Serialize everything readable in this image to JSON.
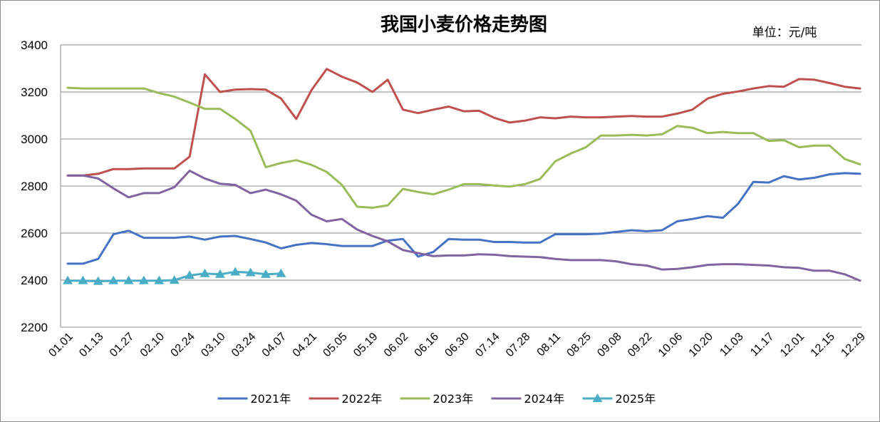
{
  "chart_data": {
    "type": "line",
    "title": "我国小麦价格走势图",
    "unit_label": "单位：元/吨",
    "xlabel": "",
    "ylabel": "",
    "ylim": [
      2200,
      3400
    ],
    "yticks": [
      2200,
      2400,
      2600,
      2800,
      3000,
      3200,
      3400
    ],
    "grid": "horizontal",
    "legend_position": "bottom",
    "x_tick_labels": [
      "01.01",
      "01.13",
      "01.27",
      "02.10",
      "02.24",
      "03.10",
      "03.24",
      "04.07",
      "04.21",
      "05.05",
      "05.19",
      "06.02",
      "06.16",
      "06.30",
      "07.14",
      "07.28",
      "08.11",
      "08.25",
      "09.08",
      "09.22",
      "10.06",
      "10.20",
      "11.03",
      "11.17",
      "12.01",
      "12.15",
      "12.29"
    ],
    "n_points": 53,
    "series": [
      {
        "name": "2021年",
        "color": "#4472C4",
        "marker": "none",
        "values": [
          2470,
          2470,
          2490,
          2595,
          2610,
          2580,
          2580,
          2580,
          2585,
          2572,
          2585,
          2588,
          2575,
          2560,
          2535,
          2550,
          2558,
          2553,
          2545,
          2545,
          2545,
          2568,
          2575,
          2500,
          2520,
          2575,
          2572,
          2572,
          2562,
          2562,
          2560,
          2560,
          2595,
          2595,
          2595,
          2598,
          2605,
          2612,
          2608,
          2612,
          2650,
          2660,
          2672,
          2665,
          2725,
          2818,
          2815,
          2842,
          2828,
          2835,
          2850,
          2855,
          2852
        ]
      },
      {
        "name": "2022年",
        "color": "#C0504D",
        "marker": "none",
        "values": [
          2845,
          2845,
          2852,
          2872,
          2872,
          2875,
          2875,
          2875,
          2925,
          3275,
          3200,
          3210,
          3212,
          3210,
          3172,
          3085,
          3208,
          3298,
          3265,
          3240,
          3200,
          3252,
          3125,
          3110,
          3125,
          3138,
          3118,
          3120,
          3090,
          3070,
          3078,
          3092,
          3088,
          3095,
          3092,
          3092,
          3095,
          3098,
          3095,
          3095,
          3108,
          3125,
          3172,
          3192,
          3202,
          3215,
          3225,
          3222,
          3255,
          3252,
          3238,
          3222,
          3215
        ]
      },
      {
        "name": "2023年",
        "color": "#9BBB59",
        "marker": "none",
        "values": [
          3218,
          3215,
          3215,
          3215,
          3215,
          3215,
          3195,
          3180,
          3155,
          3128,
          3128,
          3085,
          3035,
          2880,
          2898,
          2910,
          2890,
          2860,
          2805,
          2712,
          2708,
          2718,
          2788,
          2775,
          2765,
          2785,
          2808,
          2808,
          2802,
          2798,
          2808,
          2830,
          2905,
          2938,
          2965,
          3015,
          3015,
          3018,
          3015,
          3020,
          3055,
          3048,
          3025,
          3030,
          3025,
          3025,
          2992,
          2995,
          2965,
          2972,
          2972,
          2915,
          2892
        ]
      },
      {
        "name": "2024年",
        "color": "#8064A2",
        "marker": "none",
        "values": [
          2845,
          2845,
          2832,
          2790,
          2752,
          2770,
          2770,
          2795,
          2865,
          2832,
          2810,
          2805,
          2770,
          2785,
          2765,
          2738,
          2678,
          2650,
          2660,
          2615,
          2588,
          2565,
          2528,
          2515,
          2502,
          2505,
          2505,
          2510,
          2508,
          2502,
          2500,
          2498,
          2490,
          2485,
          2485,
          2485,
          2480,
          2468,
          2462,
          2445,
          2448,
          2455,
          2465,
          2468,
          2468,
          2465,
          2462,
          2455,
          2452,
          2440,
          2440,
          2425,
          2398
        ]
      },
      {
        "name": "2025年",
        "color": "#4BACC6",
        "marker": "triangle",
        "values": [
          2398,
          2398,
          2395,
          2398,
          2398,
          2398,
          2398,
          2400,
          2420,
          2428,
          2425,
          2435,
          2432,
          2425,
          2428
        ]
      }
    ]
  }
}
